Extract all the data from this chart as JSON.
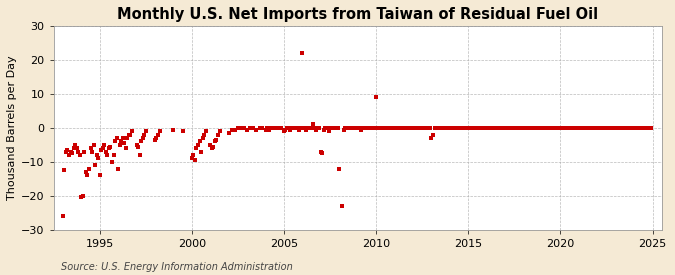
{
  "title": "Monthly U.S. Net Imports from Taiwan of Residual Fuel Oil",
  "ylabel": "Thousand Barrels per Day",
  "source": "Source: U.S. Energy Information Administration",
  "xlim": [
    1992.5,
    2025.5
  ],
  "ylim": [
    -30,
    30
  ],
  "yticks": [
    -30,
    -20,
    -10,
    0,
    10,
    20,
    30
  ],
  "xticks": [
    1995,
    2000,
    2005,
    2010,
    2015,
    2020,
    2025
  ],
  "fig_bg_color": "#f5ead5",
  "plot_bg_color": "#ffffff",
  "marker_color": "#cc0000",
  "marker_size": 7,
  "grid_color": "#aaaaaa",
  "title_fontsize": 10.5,
  "label_fontsize": 8,
  "tick_fontsize": 8,
  "source_fontsize": 7,
  "data_points": [
    [
      1993.0,
      -26.0
    ],
    [
      1993.08,
      -12.5
    ],
    [
      1993.17,
      -7.0
    ],
    [
      1993.25,
      -6.5
    ],
    [
      1993.33,
      -8.0
    ],
    [
      1993.42,
      -7.0
    ],
    [
      1993.5,
      -7.5
    ],
    [
      1993.58,
      -6.0
    ],
    [
      1993.67,
      -5.0
    ],
    [
      1993.75,
      -6.0
    ],
    [
      1993.83,
      -7.0
    ],
    [
      1993.92,
      -8.0
    ],
    [
      1994.0,
      -20.5
    ],
    [
      1994.08,
      -20.0
    ],
    [
      1994.17,
      -7.0
    ],
    [
      1994.25,
      -13.0
    ],
    [
      1994.33,
      -14.0
    ],
    [
      1994.42,
      -12.0
    ],
    [
      1994.5,
      -6.0
    ],
    [
      1994.58,
      -7.0
    ],
    [
      1994.67,
      -5.0
    ],
    [
      1994.75,
      -11.0
    ],
    [
      1994.83,
      -8.0
    ],
    [
      1994.92,
      -9.0
    ],
    [
      1995.0,
      -14.0
    ],
    [
      1995.08,
      -6.5
    ],
    [
      1995.17,
      -6.0
    ],
    [
      1995.25,
      -5.0
    ],
    [
      1995.33,
      -7.0
    ],
    [
      1995.42,
      -8.0
    ],
    [
      1995.5,
      -6.0
    ],
    [
      1995.58,
      -5.5
    ],
    [
      1995.67,
      -10.0
    ],
    [
      1995.75,
      -8.0
    ],
    [
      1995.83,
      -4.0
    ],
    [
      1995.92,
      -3.0
    ],
    [
      1996.0,
      -12.0
    ],
    [
      1996.08,
      -5.0
    ],
    [
      1996.17,
      -4.0
    ],
    [
      1996.25,
      -3.0
    ],
    [
      1996.33,
      -4.5
    ],
    [
      1996.42,
      -6.0
    ],
    [
      1996.5,
      -3.0
    ],
    [
      1996.58,
      -2.0
    ],
    [
      1996.67,
      -2.0
    ],
    [
      1996.75,
      -1.0
    ],
    [
      1997.0,
      -5.0
    ],
    [
      1997.08,
      -5.5
    ],
    [
      1997.17,
      -8.0
    ],
    [
      1997.25,
      -4.0
    ],
    [
      1997.33,
      -3.0
    ],
    [
      1997.42,
      -2.0
    ],
    [
      1997.5,
      -1.0
    ],
    [
      1998.0,
      -3.5
    ],
    [
      1998.08,
      -3.0
    ],
    [
      1998.17,
      -2.0
    ],
    [
      1998.25,
      -1.0
    ],
    [
      1999.0,
      -0.5
    ],
    [
      1999.5,
      -1.0
    ],
    [
      2000.0,
      -9.0
    ],
    [
      2000.08,
      -8.0
    ],
    [
      2000.17,
      -9.5
    ],
    [
      2000.25,
      -6.0
    ],
    [
      2000.33,
      -5.0
    ],
    [
      2000.42,
      -4.0
    ],
    [
      2000.5,
      -7.0
    ],
    [
      2000.58,
      -3.0
    ],
    [
      2000.67,
      -2.0
    ],
    [
      2000.75,
      -1.0
    ],
    [
      2001.0,
      -5.0
    ],
    [
      2001.08,
      -6.0
    ],
    [
      2001.17,
      -5.5
    ],
    [
      2001.25,
      -4.0
    ],
    [
      2001.33,
      -3.5
    ],
    [
      2001.42,
      -2.0
    ],
    [
      2001.5,
      -1.0
    ],
    [
      2002.0,
      -1.5
    ],
    [
      2002.17,
      -0.5
    ],
    [
      2002.33,
      -0.5
    ],
    [
      2002.5,
      0.0
    ],
    [
      2002.67,
      0.0
    ],
    [
      2002.83,
      0.0
    ],
    [
      2003.0,
      -0.5
    ],
    [
      2003.17,
      0.0
    ],
    [
      2003.33,
      0.0
    ],
    [
      2003.5,
      -0.5
    ],
    [
      2003.67,
      0.0
    ],
    [
      2003.83,
      0.0
    ],
    [
      2004.0,
      -0.5
    ],
    [
      2004.08,
      0.0
    ],
    [
      2004.17,
      -0.5
    ],
    [
      2004.25,
      0.0
    ],
    [
      2004.33,
      0.0
    ],
    [
      2004.5,
      0.0
    ],
    [
      2004.67,
      0.0
    ],
    [
      2004.83,
      0.0
    ],
    [
      2005.0,
      -1.0
    ],
    [
      2005.08,
      -0.5
    ],
    [
      2005.17,
      0.0
    ],
    [
      2005.25,
      0.0
    ],
    [
      2005.33,
      -0.5
    ],
    [
      2005.42,
      0.0
    ],
    [
      2005.5,
      0.0
    ],
    [
      2005.58,
      0.0
    ],
    [
      2005.67,
      0.0
    ],
    [
      2005.75,
      0.0
    ],
    [
      2005.83,
      -0.5
    ],
    [
      2005.92,
      0.0
    ],
    [
      2006.0,
      22.0
    ],
    [
      2006.08,
      0.0
    ],
    [
      2006.17,
      -0.5
    ],
    [
      2006.25,
      0.0
    ],
    [
      2006.33,
      0.0
    ],
    [
      2006.42,
      0.0
    ],
    [
      2006.5,
      0.0
    ],
    [
      2006.58,
      1.0
    ],
    [
      2006.67,
      0.0
    ],
    [
      2006.75,
      -0.5
    ],
    [
      2006.83,
      0.0
    ],
    [
      2006.92,
      0.0
    ],
    [
      2007.0,
      -7.0
    ],
    [
      2007.08,
      -7.5
    ],
    [
      2007.17,
      -0.5
    ],
    [
      2007.25,
      0.0
    ],
    [
      2007.33,
      0.0
    ],
    [
      2007.42,
      -1.0
    ],
    [
      2007.5,
      0.0
    ],
    [
      2007.58,
      0.0
    ],
    [
      2007.67,
      0.0
    ],
    [
      2007.75,
      0.0
    ],
    [
      2007.83,
      0.0
    ],
    [
      2007.92,
      0.0
    ],
    [
      2008.0,
      -12.0
    ],
    [
      2008.17,
      -23.0
    ],
    [
      2008.25,
      -0.5
    ],
    [
      2008.33,
      0.0
    ],
    [
      2008.42,
      0.0
    ],
    [
      2008.5,
      0.0
    ],
    [
      2008.58,
      0.0
    ],
    [
      2008.67,
      0.0
    ],
    [
      2008.75,
      0.0
    ],
    [
      2008.83,
      0.0
    ],
    [
      2008.92,
      0.0
    ],
    [
      2009.0,
      0.0
    ],
    [
      2009.08,
      0.0
    ],
    [
      2009.17,
      -0.5
    ],
    [
      2009.25,
      0.0
    ],
    [
      2009.33,
      0.0
    ],
    [
      2009.42,
      0.0
    ],
    [
      2009.5,
      0.0
    ],
    [
      2009.58,
      0.0
    ],
    [
      2009.67,
      0.0
    ],
    [
      2009.75,
      0.0
    ],
    [
      2009.83,
      0.0
    ],
    [
      2009.92,
      0.0
    ],
    [
      2010.0,
      9.0
    ],
    [
      2010.08,
      0.0
    ],
    [
      2010.17,
      0.0
    ],
    [
      2010.25,
      0.0
    ],
    [
      2010.33,
      0.0
    ],
    [
      2010.42,
      0.0
    ],
    [
      2010.5,
      0.0
    ],
    [
      2010.58,
      0.0
    ],
    [
      2010.67,
      0.0
    ],
    [
      2010.75,
      0.0
    ],
    [
      2010.83,
      0.0
    ],
    [
      2010.92,
      0.0
    ],
    [
      2011.0,
      0.0
    ],
    [
      2011.08,
      0.0
    ],
    [
      2011.17,
      0.0
    ],
    [
      2011.25,
      0.0
    ],
    [
      2011.33,
      0.0
    ],
    [
      2011.42,
      0.0
    ],
    [
      2011.5,
      0.0
    ],
    [
      2011.58,
      0.0
    ],
    [
      2011.67,
      0.0
    ],
    [
      2011.75,
      0.0
    ],
    [
      2011.83,
      0.0
    ],
    [
      2011.92,
      0.0
    ],
    [
      2012.0,
      0.0
    ],
    [
      2012.08,
      0.0
    ],
    [
      2012.17,
      0.0
    ],
    [
      2012.25,
      0.0
    ],
    [
      2012.33,
      0.0
    ],
    [
      2012.42,
      0.0
    ],
    [
      2012.5,
      0.0
    ],
    [
      2012.58,
      0.0
    ],
    [
      2012.67,
      0.0
    ],
    [
      2012.75,
      0.0
    ],
    [
      2012.83,
      0.0
    ],
    [
      2012.92,
      0.0
    ],
    [
      2013.0,
      -3.0
    ],
    [
      2013.08,
      -2.0
    ],
    [
      2013.17,
      0.0
    ],
    [
      2013.25,
      0.0
    ],
    [
      2013.33,
      0.0
    ],
    [
      2013.42,
      0.0
    ],
    [
      2013.5,
      0.0
    ],
    [
      2013.58,
      0.0
    ],
    [
      2013.67,
      0.0
    ],
    [
      2013.75,
      0.0
    ],
    [
      2013.83,
      0.0
    ],
    [
      2013.92,
      0.0
    ],
    [
      2014.0,
      0.0
    ],
    [
      2014.08,
      0.0
    ],
    [
      2014.17,
      0.0
    ],
    [
      2014.25,
      0.0
    ],
    [
      2014.33,
      0.0
    ],
    [
      2014.42,
      0.0
    ],
    [
      2014.5,
      0.0
    ],
    [
      2014.58,
      0.0
    ],
    [
      2014.67,
      0.0
    ],
    [
      2014.75,
      0.0
    ],
    [
      2014.83,
      0.0
    ],
    [
      2014.92,
      0.0
    ],
    [
      2015.0,
      0.0
    ],
    [
      2015.08,
      0.0
    ],
    [
      2015.17,
      0.0
    ],
    [
      2015.25,
      0.0
    ],
    [
      2015.33,
      0.0
    ],
    [
      2015.42,
      0.0
    ],
    [
      2015.5,
      0.0
    ],
    [
      2015.58,
      0.0
    ],
    [
      2015.67,
      0.0
    ],
    [
      2015.75,
      0.0
    ],
    [
      2015.83,
      0.0
    ],
    [
      2015.92,
      0.0
    ],
    [
      2016.0,
      0.0
    ],
    [
      2016.08,
      0.0
    ],
    [
      2016.17,
      0.0
    ],
    [
      2016.25,
      0.0
    ],
    [
      2016.33,
      0.0
    ],
    [
      2016.42,
      0.0
    ],
    [
      2016.5,
      0.0
    ],
    [
      2016.58,
      0.0
    ],
    [
      2016.67,
      0.0
    ],
    [
      2016.75,
      0.0
    ],
    [
      2016.83,
      0.0
    ],
    [
      2016.92,
      0.0
    ],
    [
      2017.0,
      0.0
    ],
    [
      2017.08,
      0.0
    ],
    [
      2017.17,
      0.0
    ],
    [
      2017.25,
      0.0
    ],
    [
      2017.33,
      0.0
    ],
    [
      2017.42,
      0.0
    ],
    [
      2017.5,
      0.0
    ],
    [
      2017.58,
      0.0
    ],
    [
      2017.67,
      0.0
    ],
    [
      2017.75,
      0.0
    ],
    [
      2017.83,
      0.0
    ],
    [
      2017.92,
      0.0
    ],
    [
      2018.0,
      0.0
    ],
    [
      2018.08,
      0.0
    ],
    [
      2018.17,
      0.0
    ],
    [
      2018.25,
      0.0
    ],
    [
      2018.33,
      0.0
    ],
    [
      2018.42,
      0.0
    ],
    [
      2018.5,
      0.0
    ],
    [
      2018.58,
      0.0
    ],
    [
      2018.67,
      0.0
    ],
    [
      2018.75,
      0.0
    ],
    [
      2018.83,
      0.0
    ],
    [
      2018.92,
      0.0
    ],
    [
      2019.0,
      0.0
    ],
    [
      2019.08,
      0.0
    ],
    [
      2019.17,
      0.0
    ],
    [
      2019.25,
      0.0
    ],
    [
      2019.33,
      0.0
    ],
    [
      2019.42,
      0.0
    ],
    [
      2019.5,
      0.0
    ],
    [
      2019.58,
      0.0
    ],
    [
      2019.67,
      0.0
    ],
    [
      2019.75,
      0.0
    ],
    [
      2019.83,
      0.0
    ],
    [
      2019.92,
      0.0
    ],
    [
      2020.0,
      0.0
    ],
    [
      2020.08,
      0.0
    ],
    [
      2020.17,
      0.0
    ],
    [
      2020.25,
      0.0
    ],
    [
      2020.33,
      0.0
    ],
    [
      2020.42,
      0.0
    ],
    [
      2020.5,
      0.0
    ],
    [
      2020.58,
      0.0
    ],
    [
      2020.67,
      0.0
    ],
    [
      2020.75,
      0.0
    ],
    [
      2020.83,
      0.0
    ],
    [
      2020.92,
      0.0
    ],
    [
      2021.0,
      0.0
    ],
    [
      2021.08,
      0.0
    ],
    [
      2021.17,
      0.0
    ],
    [
      2021.25,
      0.0
    ],
    [
      2021.33,
      0.0
    ],
    [
      2021.42,
      0.0
    ],
    [
      2021.5,
      0.0
    ],
    [
      2021.58,
      0.0
    ],
    [
      2021.67,
      0.0
    ],
    [
      2021.75,
      0.0
    ],
    [
      2021.83,
      0.0
    ],
    [
      2021.92,
      0.0
    ],
    [
      2022.0,
      0.0
    ],
    [
      2022.08,
      0.0
    ],
    [
      2022.17,
      0.0
    ],
    [
      2022.25,
      0.0
    ],
    [
      2022.33,
      0.0
    ],
    [
      2022.42,
      0.0
    ],
    [
      2022.5,
      0.0
    ],
    [
      2022.58,
      0.0
    ],
    [
      2022.67,
      0.0
    ],
    [
      2022.75,
      0.0
    ],
    [
      2022.83,
      0.0
    ],
    [
      2022.92,
      0.0
    ],
    [
      2023.0,
      0.0
    ],
    [
      2023.08,
      0.0
    ],
    [
      2023.17,
      0.0
    ],
    [
      2023.25,
      0.0
    ],
    [
      2023.33,
      0.0
    ],
    [
      2023.42,
      0.0
    ],
    [
      2023.5,
      0.0
    ],
    [
      2023.58,
      0.0
    ],
    [
      2023.67,
      0.0
    ],
    [
      2023.75,
      0.0
    ],
    [
      2023.83,
      0.0
    ],
    [
      2023.92,
      0.0
    ],
    [
      2024.0,
      0.0
    ],
    [
      2024.08,
      0.0
    ],
    [
      2024.17,
      0.0
    ],
    [
      2024.25,
      0.0
    ],
    [
      2024.33,
      0.0
    ],
    [
      2024.42,
      0.0
    ],
    [
      2024.5,
      0.0
    ],
    [
      2024.58,
      0.0
    ],
    [
      2024.67,
      0.0
    ],
    [
      2024.75,
      0.0
    ],
    [
      2024.83,
      0.0
    ],
    [
      2024.92,
      0.0
    ]
  ]
}
